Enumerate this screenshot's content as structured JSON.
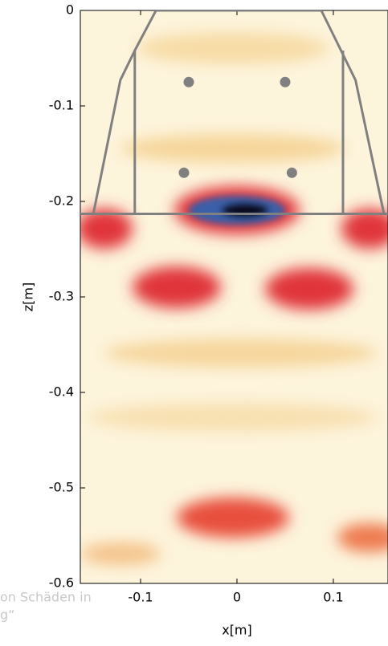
{
  "chart_data": {
    "type": "line",
    "xlabel": "x[m]",
    "ylabel": "z[m]",
    "xlim": [
      -0.1625,
      0.1567
    ],
    "ylim": [
      -0.6,
      0
    ],
    "xticks": [
      -0.1,
      0,
      0.1
    ],
    "yticks": [
      0,
      -0.1,
      -0.2,
      -0.3,
      -0.4,
      -0.5,
      -0.6
    ],
    "series": [
      {
        "color": "#808080",
        "x": [
          -0.149,
          -0.121,
          -0.106,
          -0.084,
          0.0875,
          0.108,
          0.123,
          0.1525
        ],
        "values": [
          -0.213,
          -0.073,
          -0.042,
          0,
          0,
          -0.042,
          -0.073,
          -0.213
        ]
      },
      {
        "color": "#808080",
        "x": [
          -0.1625,
          0.1567
        ],
        "values": [
          -0.213,
          -0.213
        ]
      },
      {
        "color": "#808080",
        "x": [
          -0.106,
          -0.106,
          null,
          0.11,
          0.11
        ],
        "values": [
          -0.042,
          -0.213,
          null,
          -0.042,
          -0.213
        ]
      }
    ],
    "points": {
      "color": "#808080",
      "x": [
        -0.05,
        0.05,
        -0.055,
        0.057
      ],
      "values": [
        -0.075,
        -0.075,
        -0.17,
        -0.17
      ]
    }
  },
  "background_text": [
    "on Schäden in",
    "g“"
  ]
}
